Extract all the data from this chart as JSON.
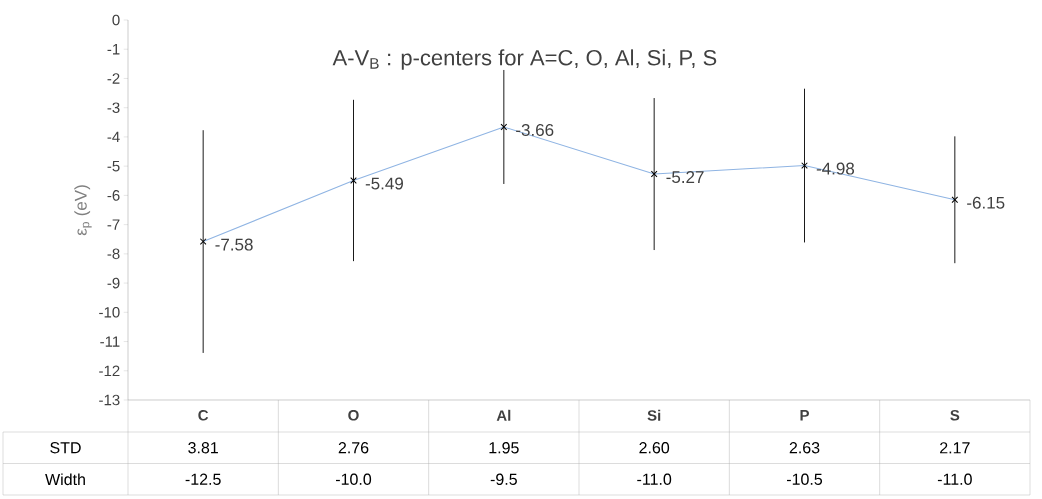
{
  "chart_data": {
    "type": "line",
    "title": "A-V$_{B}$ : p-centers for A=C, O, Al, Si, P, S",
    "ylabel": "ε$_{p}$ (eV)",
    "categories": [
      "C",
      "O",
      "Al",
      "Si",
      "P",
      "S"
    ],
    "series": [
      {
        "color": "#8fb4e3",
        "values": [
          -7.58,
          -5.49,
          -3.66,
          -5.27,
          -4.98,
          -6.15
        ],
        "errors": [
          3.81,
          2.76,
          1.95,
          2.6,
          2.63,
          2.17
        ]
      }
    ],
    "ylim": [
      -13,
      0
    ],
    "yticks": [
      -13,
      -12,
      -11,
      -10,
      -9,
      -8,
      -7,
      -6,
      -5,
      -4,
      -3,
      -2,
      -1,
      0
    ],
    "marker": "cross",
    "line_style": "solid",
    "data_labels": true,
    "grid": false,
    "annotations": [
      "STD",
      "3.81",
      "2.76",
      "1.95",
      "2.60",
      "2.63",
      "2.17",
      "Width",
      "-12.5",
      "-10.0",
      "-9.5",
      "-11.0",
      "-10.5",
      "-11.0"
    ]
  }
}
